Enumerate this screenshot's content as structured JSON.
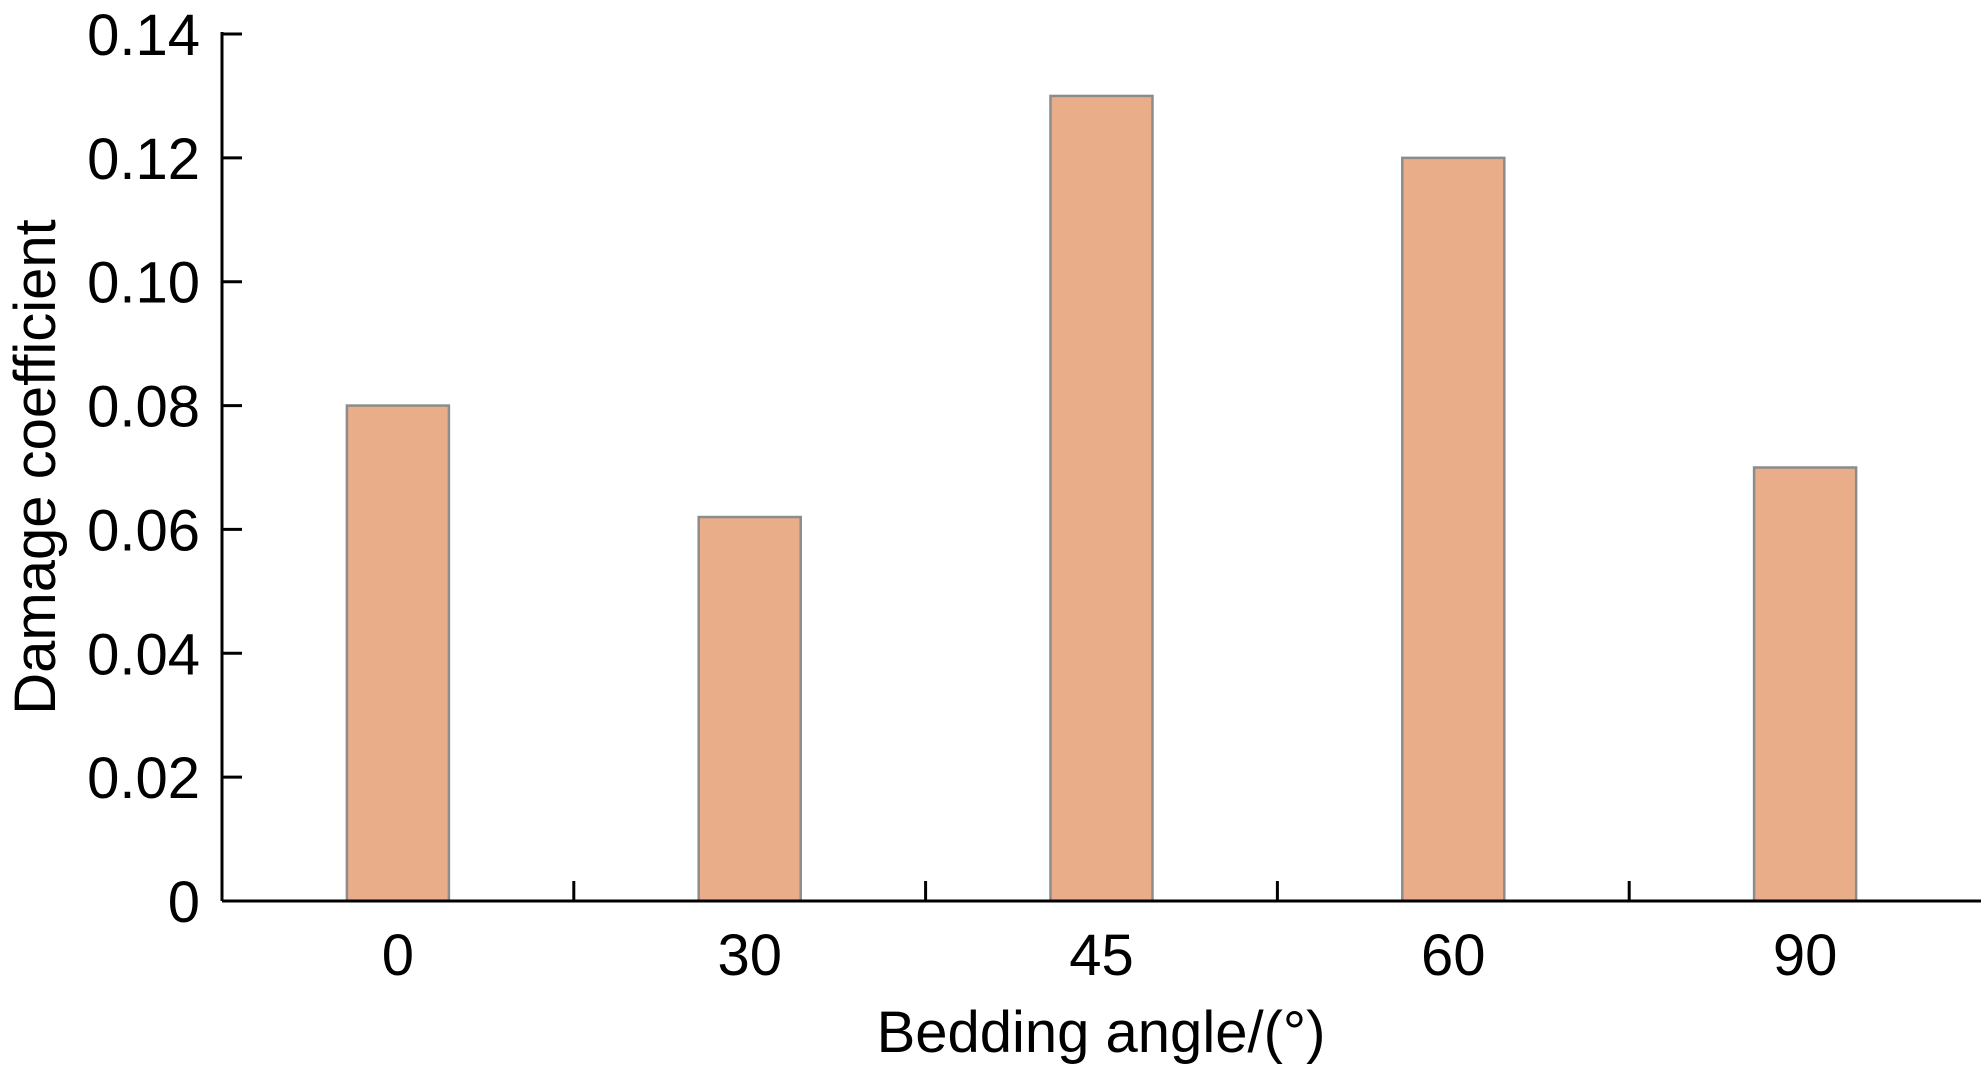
{
  "chart_data": {
    "type": "bar",
    "title": "",
    "xlabel": "Bedding angle/(°)",
    "ylabel": "Damage coefficient",
    "categories": [
      "0",
      "30",
      "45",
      "60",
      "90"
    ],
    "values": [
      0.08,
      0.062,
      0.13,
      0.12,
      0.07
    ],
    "ylim": [
      0,
      0.14
    ],
    "yticks": [
      "0",
      "0.02",
      "0.04",
      "0.06",
      "0.08",
      "0.10",
      "0.12",
      "0.14"
    ],
    "grid": false,
    "legend": "none",
    "bar_color": "#E9AE89",
    "bar_edge_color": "#8C8C8C"
  }
}
